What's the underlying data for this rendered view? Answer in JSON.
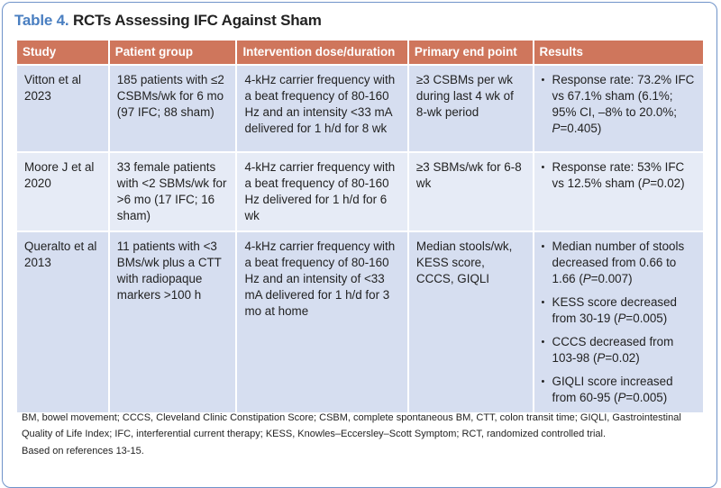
{
  "title": {
    "label": "Table 4.",
    "text": "RCTs Assessing IFC Against Sham"
  },
  "colors": {
    "header": "#cf765c",
    "title_label": "#4a7fc1",
    "row_dark": "#d6def0",
    "row_light": "#e6ebf6",
    "frame": "#6f93c9"
  },
  "headers": [
    "Study",
    "Patient group",
    "Intervention dose/duration",
    "Primary end point",
    "Results"
  ],
  "rows": [
    {
      "study": "Vitton et al 2023",
      "patients": "185 patients with ≤2 CSBMs/wk for 6 mo (97 IFC; 88 sham)",
      "intervention": "4-kHz carrier frequency with a beat frequency of 80-160 Hz and an intensity <33 mA delivered for 1 h/d for 8 wk",
      "endpoint": "≥3 CSBMs per wk during last 4 wk of 8-wk period",
      "results": [
        {
          "pre": "Response rate: 73.2% IFC vs 67.1% sham (6.1%; 95% CI, –8% to 20.0%; ",
          "p": "P",
          "post": "=0.405)"
        }
      ]
    },
    {
      "study": "Moore J et al 2020",
      "patients": "33 female patients with <2 SBMs/wk for >6 mo (17 IFC; 16 sham)",
      "intervention": "4-kHz carrier frequency with a beat frequency of 80-160 Hz delivered for 1 h/d for 6 wk",
      "endpoint": "≥3 SBMs/wk for 6-8 wk",
      "results": [
        {
          "pre": "Response rate: 53% IFC vs 12.5% sham (",
          "p": "P",
          "post": "=0.02)"
        }
      ]
    },
    {
      "study": "Queralto et al 2013",
      "patients": "11 patients with <3 BMs/wk plus a CTT with radiopaque markers >100 h",
      "intervention": "4-kHz carrier frequency with a beat frequency of 80-160 Hz and an intensity of <33 mA delivered for 1 h/d for 3 mo at home",
      "endpoint": "Median stools/wk, KESS score, CCCS, GIQLI",
      "results": [
        {
          "pre": "Median number of stools decreased from 0.66 to 1.66 (",
          "p": "P",
          "post": "=0.007)"
        },
        {
          "pre": "KESS score decreased from 30-19 (",
          "p": "P",
          "post": "=0.005)"
        },
        {
          "pre": "CCCS decreased from 103-98 (",
          "p": "P",
          "post": "=0.02)"
        },
        {
          "pre": "GIQLI score increased from 60-95 (",
          "p": "P",
          "post": "=0.005)"
        }
      ]
    }
  ],
  "footnote": "BM, bowel movement; CCCS, Cleveland Clinic Constipation Score; CSBM, complete spontaneous BM, CTT, colon transit time;  GIQLI, Gastrointestinal Quality of Life Index; IFC, interferential current therapy; KESS, Knowles–Eccersley–Scott Symptom; RCT, randomized controlled trial.",
  "references": "Based on references 13-15."
}
